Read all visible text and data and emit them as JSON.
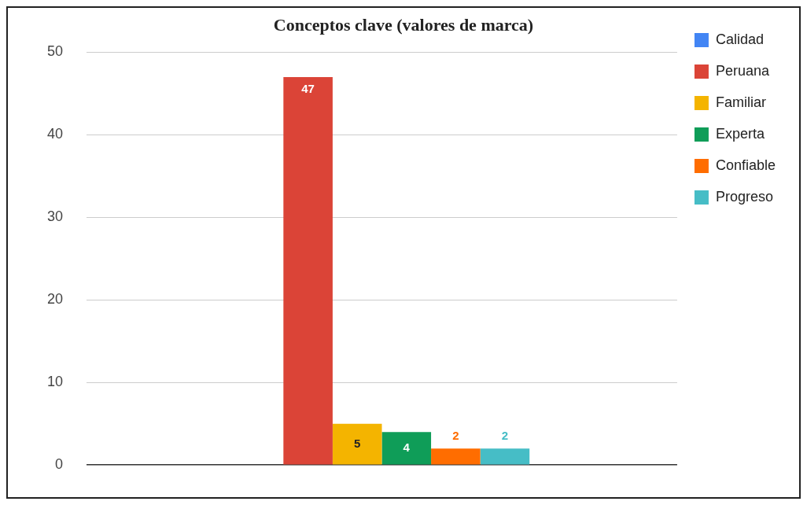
{
  "chart_data": {
    "type": "bar",
    "title": "Conceptos clave (valores de marca)",
    "categories": [
      null
    ],
    "series": [
      {
        "name": "Calidad",
        "color": "#4285f4",
        "values": [
          0
        ],
        "value_labels": [
          null
        ]
      },
      {
        "name": "Peruana",
        "color": "#db4437",
        "values": [
          47
        ],
        "value_labels": [
          "47"
        ]
      },
      {
        "name": "Familiar",
        "color": "#f4b400",
        "values": [
          5
        ],
        "value_labels": [
          "5"
        ]
      },
      {
        "name": "Experta",
        "color": "#0f9d58",
        "values": [
          4
        ],
        "value_labels": [
          "4"
        ]
      },
      {
        "name": "Confiable",
        "color": "#ff6d00",
        "values": [
          2
        ],
        "value_labels": [
          "2"
        ]
      },
      {
        "name": "Progreso",
        "color": "#46bdc6",
        "values": [
          2
        ],
        "value_labels": [
          "2"
        ]
      }
    ],
    "ylim": [
      0,
      50
    ],
    "yticks": [
      0,
      10,
      20,
      30,
      40,
      50
    ],
    "grid": "y",
    "legend": "right"
  }
}
